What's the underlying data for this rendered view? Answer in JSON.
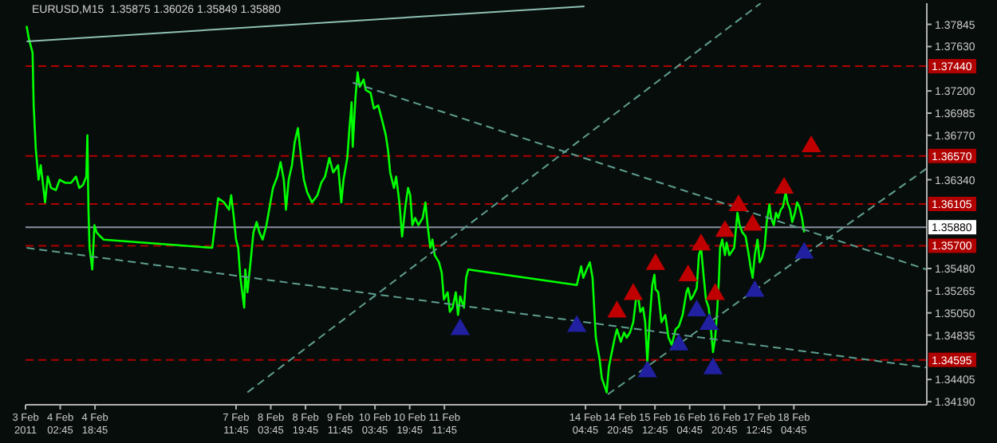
{
  "chart_data": {
    "type": "line",
    "title": "EURUSD,M15  1.35875 1.36026 1.35849 1.35880",
    "grid": false,
    "legend": false,
    "xlim": [
      "2011-02-03T10:45",
      "2011-02-20T18:00"
    ],
    "xticks": [
      {
        "value": "2011-02-03T10:45",
        "label": "3 Feb 2011"
      },
      {
        "value": "2011-02-04T02:45",
        "label": "4 Feb 02:45"
      },
      {
        "value": "2011-02-04T18:45",
        "label": "4 Feb 18:45"
      },
      {
        "value": "2011-02-07T11:45",
        "label": "7 Feb 11:45"
      },
      {
        "value": "2011-02-08T03:45",
        "label": "8 Feb 03:45"
      },
      {
        "value": "2011-02-08T19:45",
        "label": "8 Feb 19:45"
      },
      {
        "value": "2011-02-09T11:45",
        "label": "9 Feb 11:45"
      },
      {
        "value": "2011-02-10T03:45",
        "label": "10 Feb 03:45"
      },
      {
        "value": "2011-02-10T19:45",
        "label": "10 Feb 19:45"
      },
      {
        "value": "2011-02-11T11:45",
        "label": "11 Feb 11:45"
      },
      {
        "value": "2011-02-14T04:45",
        "label": "14 Feb 04:45"
      },
      {
        "value": "2011-02-14T20:45",
        "label": "14 Feb 20:45"
      },
      {
        "value": "2011-02-15T12:45",
        "label": "15 Feb 12:45"
      },
      {
        "value": "2011-02-16T04:45",
        "label": "16 Feb 04:45"
      },
      {
        "value": "2011-02-16T20:45",
        "label": "16 Feb 20:45"
      },
      {
        "value": "2011-02-17T12:45",
        "label": "17 Feb 12:45"
      },
      {
        "value": "2011-02-18T04:45",
        "label": "18 Feb 04:45"
      }
    ],
    "ylim": [
      1.3416,
      1.3805
    ],
    "yticks": [
      {
        "value": 1.3419,
        "label": "1.34190"
      },
      {
        "value": 1.34405,
        "label": "1.34405"
      },
      {
        "value": 1.34835,
        "label": "1.34835"
      },
      {
        "value": 1.3505,
        "label": "1.35050"
      },
      {
        "value": 1.35265,
        "label": "1.35265"
      },
      {
        "value": 1.3548,
        "label": "1.35480"
      },
      {
        "value": 1.3634,
        "label": "1.36340"
      },
      {
        "value": 1.3677,
        "label": "1.36770"
      },
      {
        "value": 1.36985,
        "label": "1.36985"
      },
      {
        "value": 1.372,
        "label": "1.37200"
      },
      {
        "value": 1.3763,
        "label": "1.37630"
      },
      {
        "value": 1.37845,
        "label": "1.37845"
      }
    ],
    "ref_lines": [
      {
        "axis": "y",
        "value": 1.3744,
        "label": "1.37440",
        "color": "#b00000",
        "line_style": "dashed"
      },
      {
        "axis": "y",
        "value": 1.3657,
        "label": "1.36570",
        "color": "#b00000",
        "line_style": "dashed"
      },
      {
        "axis": "y",
        "value": 1.36105,
        "label": "1.36105",
        "color": "#b00000",
        "line_style": "dashed"
      },
      {
        "axis": "y",
        "value": 1.357,
        "label": "1.35700",
        "color": "#b00000",
        "line_style": "dashed"
      },
      {
        "axis": "y",
        "value": 1.34595,
        "label": "1.34595",
        "color": "#b00000",
        "line_style": "dashed"
      },
      {
        "axis": "y",
        "value": 1.3588,
        "label": "1.35880",
        "color": "#8890a0",
        "line_style": "solid"
      }
    ],
    "series": [
      {
        "type": "line",
        "color": "#00ff00",
        "line_style": "solid",
        "x": [
          "2011-02-03T11:15",
          "2011-02-03T12:15",
          "2011-02-03T14:00",
          "2011-02-03T14:30",
          "2011-02-03T15:30",
          "2011-02-03T16:45",
          "2011-02-03T17:45",
          "2011-02-03T19:00",
          "2011-02-03T19:45",
          "2011-02-03T21:00",
          "2011-02-03T22:30",
          "2011-02-04T00:45",
          "2011-02-04T02:30",
          "2011-02-04T05:00",
          "2011-02-04T07:45",
          "2011-02-04T10:00",
          "2011-02-04T11:30",
          "2011-02-04T13:15",
          "2011-02-04T14:45",
          "2011-02-04T15:15",
          "2011-02-04T15:45",
          "2011-02-04T16:15",
          "2011-02-04T17:30",
          "2011-02-04T18:30",
          "2011-02-04T19:30",
          "2011-02-04T21:15",
          "2011-02-04T22:45",
          "2011-02-07T00:45",
          "2011-02-07T02:00",
          "2011-02-07T03:30",
          "2011-02-07T06:15",
          "2011-02-07T08:30",
          "2011-02-07T09:30",
          "2011-02-07T10:45",
          "2011-02-07T11:45",
          "2011-02-07T12:45",
          "2011-02-07T13:45",
          "2011-02-07T15:30",
          "2011-02-07T16:00",
          "2011-02-07T17:00",
          "2011-02-07T18:45",
          "2011-02-07T19:45",
          "2011-02-07T21:15",
          "2011-02-07T22:30",
          "2011-02-08T00:00",
          "2011-02-08T01:45",
          "2011-02-08T03:15",
          "2011-02-08T04:45",
          "2011-02-08T06:45",
          "2011-02-08T08:15",
          "2011-02-08T09:45",
          "2011-02-08T10:45",
          "2011-02-08T12:00",
          "2011-02-08T13:30",
          "2011-02-08T14:45",
          "2011-02-08T16:15",
          "2011-02-08T17:45",
          "2011-02-08T19:00",
          "2011-02-08T20:30",
          "2011-02-08T22:45",
          "2011-02-09T01:15",
          "2011-02-09T03:00",
          "2011-02-09T04:45",
          "2011-02-09T06:45",
          "2011-02-09T08:30",
          "2011-02-09T10:45",
          "2011-02-09T12:15",
          "2011-02-09T13:15",
          "2011-02-09T15:00",
          "2011-02-09T16:00",
          "2011-02-09T17:00",
          "2011-02-09T17:30",
          "2011-02-09T18:45",
          "2011-02-09T19:45",
          "2011-02-09T20:45",
          "2011-02-09T22:30",
          "2011-02-09T23:30",
          "2011-02-10T01:45",
          "2011-02-10T03:15",
          "2011-02-10T05:15",
          "2011-02-10T07:00",
          "2011-02-10T08:45",
          "2011-02-10T09:45",
          "2011-02-10T10:45",
          "2011-02-10T12:30",
          "2011-02-10T13:30",
          "2011-02-10T15:00",
          "2011-02-10T16:15",
          "2011-02-10T17:45",
          "2011-02-10T19:00",
          "2011-02-10T20:00",
          "2011-02-10T21:00",
          "2011-02-10T22:15",
          "2011-02-10T23:45",
          "2011-02-11T01:45",
          "2011-02-11T03:00",
          "2011-02-11T04:00",
          "2011-02-11T05:15",
          "2011-02-11T06:15",
          "2011-02-11T07:15",
          "2011-02-11T09:15",
          "2011-02-11T10:30",
          "2011-02-11T11:30",
          "2011-02-11T13:15",
          "2011-02-11T14:15",
          "2011-02-11T15:30",
          "2011-02-11T17:00",
          "2011-02-11T18:00",
          "2011-02-11T19:00",
          "2011-02-11T20:45",
          "2011-02-11T21:45",
          "2011-02-11T22:45",
          "2011-02-14T00:45",
          "2011-02-14T02:45",
          "2011-02-14T03:45",
          "2011-02-14T05:15",
          "2011-02-14T06:45",
          "2011-02-14T08:00",
          "2011-02-14T09:30",
          "2011-02-14T11:15",
          "2011-02-14T12:15",
          "2011-02-14T14:30",
          "2011-02-14T15:30",
          "2011-02-14T16:30",
          "2011-02-14T18:15",
          "2011-02-14T19:15",
          "2011-02-14T21:00",
          "2011-02-14T22:30",
          "2011-02-14T23:45",
          "2011-02-15T01:15",
          "2011-02-15T02:45",
          "2011-02-15T04:00",
          "2011-02-15T05:00",
          "2011-02-15T06:00",
          "2011-02-15T07:15",
          "2011-02-15T08:15",
          "2011-02-15T09:15",
          "2011-02-15T10:15",
          "2011-02-15T11:30",
          "2011-02-15T12:30",
          "2011-02-15T13:00",
          "2011-02-15T14:15",
          "2011-02-15T15:45",
          "2011-02-15T17:30",
          "2011-02-15T19:00",
          "2011-02-15T20:30",
          "2011-02-15T22:15",
          "2011-02-15T23:45",
          "2011-02-16T01:30",
          "2011-02-16T03:15",
          "2011-02-16T04:00",
          "2011-02-16T05:15",
          "2011-02-16T06:15",
          "2011-02-16T08:00",
          "2011-02-16T09:00",
          "2011-02-16T10:00",
          "2011-02-16T11:15",
          "2011-02-16T12:15",
          "2011-02-16T13:30",
          "2011-02-16T14:15",
          "2011-02-16T15:30",
          "2011-02-16T16:30",
          "2011-02-16T17:30",
          "2011-02-16T18:15",
          "2011-02-16T18:45",
          "2011-02-16T19:45",
          "2011-02-16T21:00",
          "2011-02-16T21:45",
          "2011-02-16T23:00",
          "2011-02-17T00:00",
          "2011-02-17T01:15",
          "2011-02-17T02:45",
          "2011-02-17T03:45",
          "2011-02-17T05:00",
          "2011-02-17T06:30",
          "2011-02-17T07:45",
          "2011-02-17T08:45",
          "2011-02-17T09:45",
          "2011-02-17T10:45",
          "2011-02-17T12:00",
          "2011-02-17T13:00",
          "2011-02-17T14:00",
          "2011-02-17T15:15",
          "2011-02-17T16:15",
          "2011-02-17T17:30",
          "2011-02-17T18:15",
          "2011-02-17T19:30",
          "2011-02-17T20:30",
          "2011-02-17T21:30",
          "2011-02-17T22:45",
          "2011-02-17T23:45",
          "2011-02-18T01:00",
          "2011-02-18T01:45",
          "2011-02-18T03:00",
          "2011-02-18T04:00",
          "2011-02-18T05:15",
          "2011-02-18T06:15",
          "2011-02-18T07:15",
          "2011-02-18T08:30",
          "2011-02-18T09:30"
        ],
        "values": [
          1.3783,
          1.3771,
          1.3757,
          1.3706,
          1.3663,
          1.3634,
          1.3648,
          1.3626,
          1.3612,
          1.3637,
          1.3626,
          1.3624,
          1.3634,
          1.3631,
          1.3631,
          1.3637,
          1.3626,
          1.3629,
          1.3637,
          1.3677,
          1.3605,
          1.3568,
          1.3547,
          1.359,
          1.3583,
          1.3579,
          1.3576,
          1.3568,
          1.359,
          1.3616,
          1.3612,
          1.3605,
          1.3619,
          1.3597,
          1.3576,
          1.3568,
          1.3539,
          1.351,
          1.3547,
          1.3525,
          1.3561,
          1.3583,
          1.3593,
          1.3583,
          1.3576,
          1.359,
          1.3608,
          1.3626,
          1.3637,
          1.3651,
          1.3634,
          1.3605,
          1.3634,
          1.3648,
          1.367,
          1.3684,
          1.3655,
          1.3634,
          1.3622,
          1.3612,
          1.3619,
          1.3631,
          1.3637,
          1.3655,
          1.3641,
          1.3648,
          1.3612,
          1.3634,
          1.3655,
          1.3684,
          1.3709,
          1.3666,
          1.3713,
          1.3738,
          1.3724,
          1.3731,
          1.3721,
          1.3718,
          1.3703,
          1.3706,
          1.3692,
          1.3677,
          1.3663,
          1.3641,
          1.3626,
          1.3637,
          1.3612,
          1.3579,
          1.3608,
          1.3626,
          1.3619,
          1.359,
          1.3597,
          1.359,
          1.3597,
          1.3612,
          1.359,
          1.3568,
          1.3576,
          1.3561,
          1.3554,
          1.3544,
          1.3518,
          1.3525,
          1.3506,
          1.351,
          1.3525,
          1.3503,
          1.3521,
          1.351,
          1.3539,
          1.3547,
          1.3532,
          1.355,
          1.3539,
          1.3547,
          1.3554,
          1.3539,
          1.3481,
          1.346,
          1.3442,
          1.3428,
          1.3452,
          1.3463,
          1.3481,
          1.3489,
          1.3477,
          1.3486,
          1.3481,
          1.3486,
          1.3496,
          1.3518,
          1.3521,
          1.3506,
          1.351,
          1.3496,
          1.3457,
          1.3496,
          1.3532,
          1.3542,
          1.3528,
          1.3525,
          1.3496,
          1.3503,
          1.3481,
          1.3474,
          1.3489,
          1.3492,
          1.3503,
          1.3525,
          1.3529,
          1.3518,
          1.3521,
          1.3529,
          1.3561,
          1.3568,
          1.3539,
          1.3518,
          1.351,
          1.3496,
          1.3467,
          1.3481,
          1.351,
          1.3539,
          1.3568,
          1.3576,
          1.3561,
          1.3573,
          1.3561,
          1.3564,
          1.3568,
          1.3602,
          1.359,
          1.3583,
          1.3579,
          1.3564,
          1.355,
          1.3539,
          1.3561,
          1.3576,
          1.3554,
          1.3558,
          1.3568,
          1.3593,
          1.361,
          1.3597,
          1.359,
          1.3602,
          1.3597,
          1.3605,
          1.3608,
          1.3622,
          1.3612,
          1.3605,
          1.3593,
          1.3602,
          1.3612,
          1.3608,
          1.3597,
          1.3583
        ]
      },
      {
        "type": "line",
        "color": "#8fc0b4",
        "line_style": "solid",
        "x": [
          "2011-02-03T11:15",
          "2011-02-14T04:15"
        ],
        "values": [
          1.3768,
          1.3802
        ]
      },
      {
        "type": "line",
        "color": "#5f9e8f",
        "line_style": "dashed",
        "x": [
          "2011-02-14T15:00",
          "2011-02-20T18:00"
        ],
        "values": [
          1.3426,
          1.3645
        ]
      },
      {
        "type": "line",
        "color": "#5f9e8f",
        "line_style": "dashed",
        "x": [
          "2011-02-07T17:00",
          "2011-02-17T13:30"
        ],
        "values": [
          1.3428,
          1.3805
        ]
      },
      {
        "type": "line",
        "color": "#5f9e8f",
        "line_style": "dashed",
        "x": [
          "2011-02-03T11:15",
          "2011-02-20T18:00"
        ],
        "values": [
          1.3568,
          1.3452
        ]
      },
      {
        "type": "line",
        "color": "#5f9e8f",
        "line_style": "dashed",
        "x": [
          "2011-02-09T17:30",
          "2011-02-20T18:00"
        ],
        "values": [
          1.3728,
          1.3547
        ]
      },
      {
        "type": "scatter",
        "marker": "triangle",
        "color": "#c00000",
        "x": [
          "2011-02-14T19:15",
          "2011-02-15T02:45",
          "2011-02-15T13:00",
          "2011-02-16T04:00",
          "2011-02-16T10:00",
          "2011-02-16T16:30",
          "2011-02-16T21:00",
          "2011-02-17T03:15",
          "2011-02-17T09:45",
          "2011-02-18T00:15",
          "2011-02-18T12:45"
        ],
        "values": [
          1.3506,
          1.3523,
          1.3552,
          1.3541,
          1.3571,
          1.3523,
          1.3584,
          1.3609,
          1.359,
          1.3626,
          1.3666
        ]
      },
      {
        "type": "scatter",
        "marker": "triangle",
        "color": "#2020a0",
        "x": [
          "2011-02-11T19:00",
          "2011-02-14T00:45",
          "2011-02-15T09:15",
          "2011-02-15T23:45",
          "2011-02-16T08:00",
          "2011-02-16T13:45",
          "2011-02-16T15:30",
          "2011-02-17T10:45",
          "2011-02-18T09:30"
        ],
        "values": [
          1.3489,
          1.3492,
          1.3448,
          1.3474,
          1.3507,
          1.3494,
          1.3451,
          1.3526,
          1.3563
        ]
      }
    ]
  }
}
